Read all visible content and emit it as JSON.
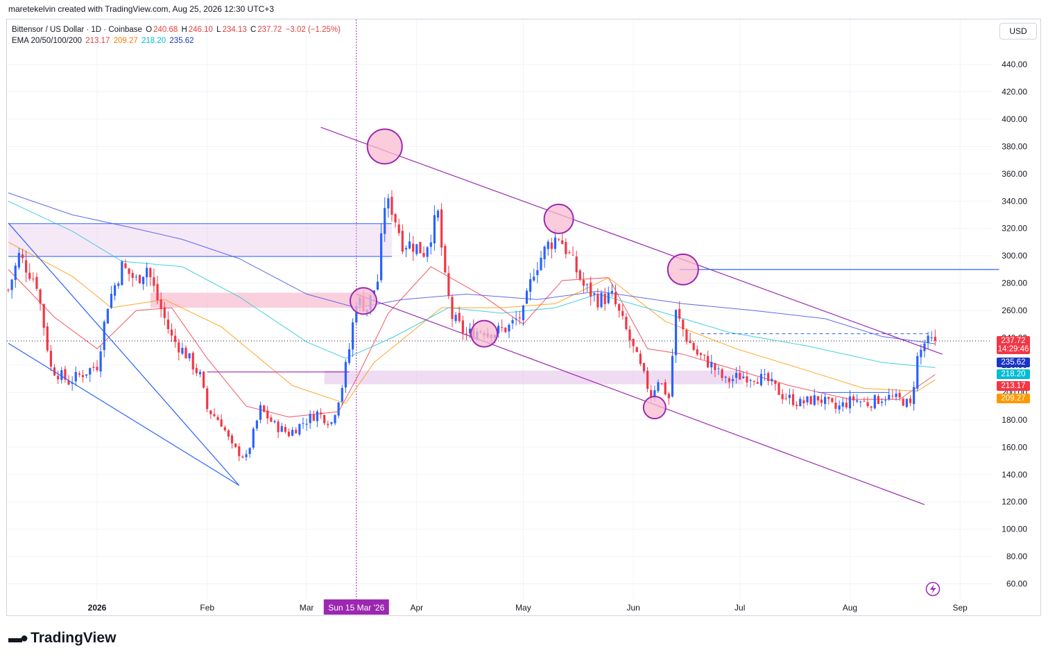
{
  "header": {
    "author_line": "maretekelvin created with TradingView.com, Aug 25, 2026 12:30 UTC+3"
  },
  "legend": {
    "symbol": "Bittensor / US Dollar · 1D · Coinbase",
    "o_label": "O",
    "o_value": "240.68",
    "h_label": "H",
    "h_value": "246.10",
    "l_label": "L",
    "l_value": "234.13",
    "c_label": "C",
    "c_value": "237.72",
    "change": "−3.02 (−1.25%)",
    "ema_label": "EMA 20/50/100/200",
    "ema20": "213.17",
    "ema50": "209.27",
    "ema100": "218.20",
    "ema200": "235.62"
  },
  "toolbar": {
    "currency": "USD"
  },
  "price_badges": {
    "last_price": "237.72",
    "countdown": "14:29:46",
    "ema200": "235.62",
    "ema100": "218.20",
    "ema20": "213.17",
    "ema50": "209.27"
  },
  "crosshair": {
    "date_label": "Sun 15 Mar '26"
  },
  "brand": {
    "name": "TradingView"
  },
  "colors": {
    "up": "#2962ff",
    "down": "#f23645",
    "ema20": "#f23645",
    "ema50": "#ff9800",
    "ema100": "#26c6da",
    "ema200": "#3f51e5",
    "channel": "#9c27b0",
    "wedge": "#2962ff",
    "zone_pink": "#f8bbd0",
    "zone_lavender": "#e1bee7"
  },
  "chart_data": {
    "type": "candlestick",
    "title": "Bittensor / US Dollar · 1D · Coinbase",
    "ylim": [
      50,
      455
    ],
    "y_ticks": [
      "440.00",
      "420.00",
      "400.00",
      "380.00",
      "360.00",
      "340.00",
      "320.00",
      "300.00",
      "280.00",
      "260.00",
      "240.00",
      "220.00",
      "200.00",
      "180.00",
      "160.00",
      "140.00",
      "120.00",
      "100.00",
      "80.00",
      "60.00"
    ],
    "x_ticks": [
      "2026",
      "Feb",
      "Mar",
      "Apr",
      "May",
      "Jun",
      "Jul",
      "Aug",
      "Sep"
    ],
    "x_tick_dates": [
      "2026-01-01",
      "2026-02-01",
      "2026-03-01",
      "2026-04-01",
      "2026-05-01",
      "2026-06-01",
      "2026-07-01",
      "2026-08-01",
      "2026-09-01"
    ],
    "date_range": [
      "2025-12-07",
      "2026-08-25"
    ],
    "anchors": [
      [
        "2025-12-07",
        275
      ],
      [
        "2025-12-10",
        300
      ],
      [
        "2025-12-15",
        280
      ],
      [
        "2025-12-19",
        218
      ],
      [
        "2025-12-24",
        208
      ],
      [
        "2025-12-28",
        214
      ],
      [
        "2026-01-01",
        220
      ],
      [
        "2026-01-04",
        265
      ],
      [
        "2026-01-08",
        292
      ],
      [
        "2026-01-12",
        282
      ],
      [
        "2026-01-15",
        292
      ],
      [
        "2026-01-18",
        268
      ],
      [
        "2026-01-22",
        240
      ],
      [
        "2026-01-26",
        228
      ],
      [
        "2026-01-30",
        212
      ],
      [
        "2026-02-01",
        188
      ],
      [
        "2026-02-05",
        178
      ],
      [
        "2026-02-08",
        160
      ],
      [
        "2026-02-12",
        152
      ],
      [
        "2026-02-16",
        188
      ],
      [
        "2026-02-20",
        176
      ],
      [
        "2026-02-24",
        170
      ],
      [
        "2026-02-28",
        178
      ],
      [
        "2026-03-04",
        185
      ],
      [
        "2026-03-08",
        178
      ],
      [
        "2026-03-11",
        205
      ],
      [
        "2026-03-13",
        232
      ],
      [
        "2026-03-15",
        268
      ],
      [
        "2026-03-18",
        262
      ],
      [
        "2026-03-21",
        282
      ],
      [
        "2026-03-23",
        338
      ],
      [
        "2026-03-25",
        335
      ],
      [
        "2026-03-28",
        310
      ],
      [
        "2026-03-31",
        308
      ],
      [
        "2026-04-03",
        303
      ],
      [
        "2026-04-07",
        330
      ],
      [
        "2026-04-09",
        282
      ],
      [
        "2026-04-11",
        255
      ],
      [
        "2026-04-15",
        242
      ],
      [
        "2026-04-19",
        246
      ],
      [
        "2026-04-23",
        244
      ],
      [
        "2026-04-27",
        248
      ],
      [
        "2026-05-01",
        258
      ],
      [
        "2026-05-04",
        290
      ],
      [
        "2026-05-08",
        308
      ],
      [
        "2026-05-11",
        315
      ],
      [
        "2026-05-14",
        300
      ],
      [
        "2026-05-18",
        278
      ],
      [
        "2026-05-22",
        268
      ],
      [
        "2026-05-26",
        270
      ],
      [
        "2026-05-30",
        245
      ],
      [
        "2026-06-03",
        218
      ],
      [
        "2026-06-06",
        198
      ],
      [
        "2026-06-08",
        210
      ],
      [
        "2026-06-11",
        196
      ],
      [
        "2026-06-13",
        258
      ],
      [
        "2026-06-16",
        240
      ],
      [
        "2026-06-19",
        228
      ],
      [
        "2026-06-23",
        220
      ],
      [
        "2026-06-27",
        208
      ],
      [
        "2026-07-01",
        212
      ],
      [
        "2026-07-05",
        212
      ],
      [
        "2026-07-09",
        208
      ],
      [
        "2026-07-13",
        198
      ],
      [
        "2026-07-18",
        192
      ],
      [
        "2026-07-23",
        196
      ],
      [
        "2026-07-28",
        188
      ],
      [
        "2026-08-02",
        195
      ],
      [
        "2026-08-06",
        192
      ],
      [
        "2026-08-11",
        197
      ],
      [
        "2026-08-16",
        194
      ],
      [
        "2026-08-18",
        190
      ],
      [
        "2026-08-20",
        225
      ],
      [
        "2026-08-22",
        236
      ],
      [
        "2026-08-25",
        237.72
      ]
    ],
    "ema": [
      {
        "name": "EMA 20",
        "last": 213.17,
        "points": [
          [
            "2025-12-07",
            290
          ],
          [
            "2025-12-20",
            255
          ],
          [
            "2026-01-01",
            232
          ],
          [
            "2026-01-12",
            260
          ],
          [
            "2026-01-22",
            262
          ],
          [
            "2026-02-01",
            225
          ],
          [
            "2026-02-12",
            190
          ],
          [
            "2026-02-24",
            182
          ],
          [
            "2026-03-10",
            186
          ],
          [
            "2026-03-15",
            210
          ],
          [
            "2026-03-24",
            258
          ],
          [
            "2026-04-05",
            292
          ],
          [
            "2026-04-20",
            270
          ],
          [
            "2026-05-01",
            250
          ],
          [
            "2026-05-12",
            282
          ],
          [
            "2026-05-25",
            284
          ],
          [
            "2026-06-05",
            232
          ],
          [
            "2026-06-15",
            228
          ],
          [
            "2026-06-28",
            218
          ],
          [
            "2026-07-15",
            205
          ],
          [
            "2026-08-01",
            195
          ],
          [
            "2026-08-15",
            195
          ],
          [
            "2026-08-25",
            213.17
          ]
        ]
      },
      {
        "name": "EMA 50",
        "last": 209.27,
        "points": [
          [
            "2025-12-07",
            310
          ],
          [
            "2025-12-25",
            285
          ],
          [
            "2026-01-05",
            262
          ],
          [
            "2026-01-20",
            268
          ],
          [
            "2026-02-05",
            248
          ],
          [
            "2026-02-25",
            205
          ],
          [
            "2026-03-12",
            192
          ],
          [
            "2026-03-20",
            222
          ],
          [
            "2026-04-08",
            262
          ],
          [
            "2026-04-25",
            262
          ],
          [
            "2026-05-10",
            265
          ],
          [
            "2026-05-25",
            284
          ],
          [
            "2026-06-10",
            252
          ],
          [
            "2026-06-30",
            232
          ],
          [
            "2026-07-20",
            216
          ],
          [
            "2026-08-05",
            203
          ],
          [
            "2026-08-20",
            201
          ],
          [
            "2026-08-25",
            209.27
          ]
        ]
      },
      {
        "name": "EMA 100",
        "last": 218.2,
        "points": [
          [
            "2025-12-07",
            340
          ],
          [
            "2025-12-25",
            318
          ],
          [
            "2026-01-08",
            296
          ],
          [
            "2026-01-25",
            292
          ],
          [
            "2026-02-10",
            270
          ],
          [
            "2026-03-01",
            237
          ],
          [
            "2026-03-12",
            225
          ],
          [
            "2026-03-25",
            240
          ],
          [
            "2026-04-10",
            262
          ],
          [
            "2026-04-25",
            258
          ],
          [
            "2026-05-10",
            262
          ],
          [
            "2026-05-22",
            272
          ],
          [
            "2026-06-10",
            258
          ],
          [
            "2026-06-28",
            244
          ],
          [
            "2026-07-20",
            234
          ],
          [
            "2026-08-10",
            222
          ],
          [
            "2026-08-25",
            218.2
          ]
        ]
      },
      {
        "name": "EMA 200",
        "last": 235.62,
        "points": [
          [
            "2025-12-07",
            346
          ],
          [
            "2025-12-25",
            330
          ],
          [
            "2026-01-10",
            321
          ],
          [
            "2026-01-25",
            312
          ],
          [
            "2026-02-10",
            298
          ],
          [
            "2026-03-01",
            272
          ],
          [
            "2026-03-15",
            262
          ],
          [
            "2026-03-28",
            268
          ],
          [
            "2026-04-15",
            272
          ],
          [
            "2026-05-05",
            268
          ],
          [
            "2026-05-22",
            274
          ],
          [
            "2026-06-15",
            265
          ],
          [
            "2026-07-05",
            260
          ],
          [
            "2026-07-25",
            254
          ],
          [
            "2026-08-10",
            241
          ],
          [
            "2026-08-25",
            235.62
          ]
        ]
      }
    ],
    "drawings": {
      "channel_upper": [
        [
          "2026-03-05",
          394
        ],
        [
          "2026-08-27",
          228
        ]
      ],
      "channel_lower": [
        [
          "2026-03-15",
          272
        ],
        [
          "2026-08-22",
          118
        ]
      ],
      "wedge_upper": [
        [
          "2025-12-07",
          324
        ],
        [
          "2026-02-10",
          132
        ]
      ],
      "wedge_lower": [
        [
          "2025-12-07",
          236
        ],
        [
          "2026-02-10",
          132
        ]
      ],
      "zone_purple": {
        "from": [
          "2025-12-07",
          323.5
        ],
        "to": [
          "2026-03-25",
          299.5
        ]
      },
      "zone_pink": {
        "from": [
          "2026-01-16",
          273
        ],
        "to": [
          "2026-03-19",
          262
        ]
      },
      "zone_lavender": {
        "from": [
          "2026-03-06",
          216
        ],
        "to": [
          "2026-07-02",
          206
        ]
      },
      "hline_290": {
        "from": [
          "2026-06-14",
          290
        ],
        "to": [
          "2026-09-12",
          290
        ]
      },
      "hline_215": {
        "from": [
          "2026-02-01",
          215
        ],
        "to": [
          "2026-03-13",
          215
        ]
      },
      "hline_dashed": {
        "from": [
          "2026-06-20",
          243
        ],
        "to": [
          "2026-08-23",
          243
        ]
      },
      "hline_200": {
        "from": [
          "2026-07-23",
          200
        ],
        "to": [
          "2026-08-12",
          200
        ]
      },
      "circles": [
        [
          "2026-03-23",
          380
        ],
        [
          "2026-05-11",
          327
        ],
        [
          "2026-06-15",
          290
        ],
        [
          "2026-03-17",
          267
        ],
        [
          "2026-04-20",
          243
        ],
        [
          "2026-06-07",
          189
        ]
      ]
    }
  }
}
